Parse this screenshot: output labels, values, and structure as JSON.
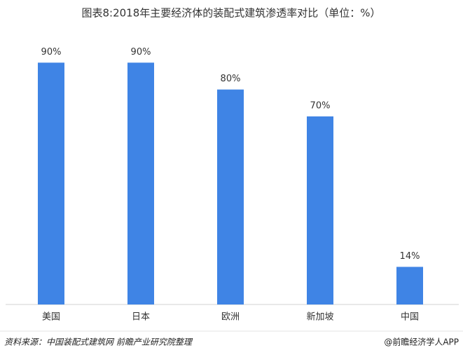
{
  "chart_data": {
    "type": "bar",
    "title": "图表8:2018年主要经济体的装配式建筑渗透率对比（单位：%）",
    "categories": [
      "美国",
      "日本",
      "欧洲",
      "新加坡",
      "中国"
    ],
    "values": [
      90,
      90,
      80,
      70,
      14
    ],
    "value_labels": [
      "90%",
      "90%",
      "80%",
      "70%",
      "14%"
    ],
    "color": "#3f84e5",
    "ylim": [
      0,
      100
    ],
    "source": "资料来源：中国装配式建筑网 前瞻产业研究院整理",
    "credit": "@前瞻经济学人APP"
  }
}
